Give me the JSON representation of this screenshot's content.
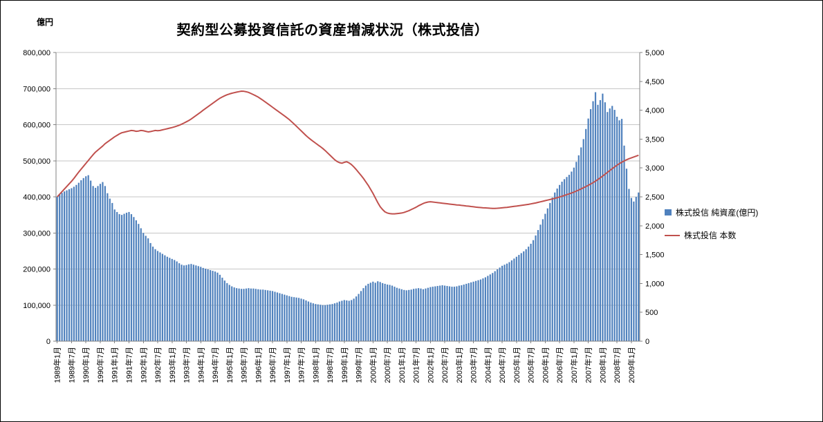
{
  "chart": {
    "title": "契約型公募投資信託の資産増減状況（株式投信）",
    "unit_label": "億円",
    "legend": [
      {
        "label": "株式投信 純資産(億円)",
        "color": "#4f81bd",
        "marker": "bar"
      },
      {
        "label": "株式投信 本数",
        "color": "#c0504d",
        "marker": "line"
      }
    ]
  },
  "chart_data": {
    "type": "bar+line",
    "title": "契約型公募投資信託の資産増減状況（株式投信）",
    "grid": true,
    "legend_position": "right",
    "months_per_tick": 6,
    "x_tick_labels": [
      "1989年1月",
      "1989年7月",
      "1990年1月",
      "1990年7月",
      "1991年1月",
      "1991年7月",
      "1992年1月",
      "1992年7月",
      "1993年1月",
      "1993年7月",
      "1994年1月",
      "1994年7月",
      "1995年1月",
      "1995年7月",
      "1996年1月",
      "1996年7月",
      "1997年1月",
      "1997年7月",
      "1998年1月",
      "1998年7月",
      "1999年1月",
      "1999年7月",
      "2000年1月",
      "2000年7月",
      "2001年1月",
      "2001年7月",
      "2002年1月",
      "2002年7月",
      "2003年1月",
      "2003年7月",
      "2004年1月",
      "2004年7月",
      "2005年1月",
      "2005年7月",
      "2006年1月",
      "2006年7月",
      "2007年1月",
      "2007年7月",
      "2008年1月",
      "2008年7月",
      "2009年1月"
    ],
    "left_axis": {
      "label": "億円",
      "min": 0,
      "max": 800000,
      "step": 100000
    },
    "right_axis": {
      "min": 0,
      "max": 5000,
      "step": 500
    },
    "series": [
      {
        "name": "株式投信 純資産(億円)",
        "type": "bar",
        "axis": "left",
        "color": "#4f81bd",
        "values": [
          400000,
          406000,
          411000,
          415000,
          418000,
          421000,
          424000,
          428000,
          433000,
          439000,
          446000,
          452000,
          457000,
          460000,
          445000,
          430000,
          425000,
          430000,
          436000,
          441000,
          430000,
          410000,
          395000,
          383000,
          365000,
          358000,
          352000,
          350000,
          353000,
          356000,
          358000,
          352000,
          344000,
          335000,
          325000,
          313000,
          300000,
          292000,
          285000,
          272000,
          262000,
          255000,
          250000,
          246000,
          242000,
          238000,
          234000,
          231000,
          228000,
          225000,
          221000,
          216000,
          212000,
          210000,
          211000,
          213000,
          214000,
          212000,
          210000,
          208000,
          206000,
          203000,
          201000,
          199000,
          197000,
          195000,
          193000,
          190000,
          184000,
          176000,
          168000,
          161000,
          156000,
          152000,
          149000,
          147000,
          146000,
          145000,
          145000,
          146000,
          147000,
          146000,
          146000,
          145000,
          144000,
          143000,
          143000,
          142000,
          141000,
          140000,
          139000,
          137000,
          135000,
          133000,
          131000,
          129000,
          127000,
          125000,
          123000,
          122000,
          121000,
          120000,
          118000,
          116000,
          113000,
          110000,
          107000,
          105000,
          103000,
          102000,
          101000,
          100000,
          100000,
          101000,
          102000,
          103000,
          105000,
          107000,
          110000,
          112000,
          114000,
          113000,
          112000,
          114000,
          118000,
          124000,
          131000,
          139000,
          147000,
          154000,
          159000,
          162000,
          165000,
          162000,
          166000,
          164000,
          161000,
          159000,
          157000,
          156000,
          154000,
          151000,
          148000,
          146000,
          144000,
          142000,
          141000,
          142000,
          143000,
          145000,
          146000,
          147000,
          146000,
          144000,
          146000,
          148000,
          150000,
          151000,
          152000,
          153000,
          154000,
          155000,
          154000,
          153000,
          152000,
          151000,
          151000,
          152000,
          154000,
          155000,
          157000,
          159000,
          161000,
          163000,
          165000,
          167000,
          169000,
          171000,
          174000,
          177000,
          181000,
          185000,
          189000,
          194000,
          199000,
          204000,
          209000,
          212000,
          215000,
          219000,
          224000,
          229000,
          234000,
          239000,
          244000,
          249000,
          255000,
          262000,
          270000,
          280000,
          293000,
          308000,
          323000,
          338000,
          353000,
          368000,
          383000,
          398000,
          412000,
          423000,
          433000,
          442000,
          449000,
          455000,
          461000,
          470000,
          481000,
          497000,
          515000,
          537000,
          560000,
          588000,
          617000,
          643000,
          665000,
          690000,
          655000,
          668000,
          686000,
          662000,
          635000,
          645000,
          652000,
          641000,
          622000,
          612000,
          616000,
          542000,
          478000,
          422000,
          397000,
          387000,
          400000,
          412000
        ]
      },
      {
        "name": "株式投信 本数",
        "type": "line",
        "axis": "right",
        "color": "#c0504d",
        "values": [
          2500,
          2545,
          2590,
          2635,
          2680,
          2725,
          2770,
          2820,
          2875,
          2930,
          2980,
          3030,
          3080,
          3130,
          3180,
          3230,
          3275,
          3310,
          3345,
          3380,
          3420,
          3450,
          3480,
          3510,
          3540,
          3565,
          3590,
          3610,
          3620,
          3630,
          3640,
          3650,
          3645,
          3635,
          3640,
          3650,
          3645,
          3635,
          3625,
          3630,
          3640,
          3650,
          3645,
          3650,
          3660,
          3670,
          3680,
          3690,
          3700,
          3712,
          3725,
          3740,
          3758,
          3778,
          3800,
          3822,
          3848,
          3878,
          3908,
          3938,
          3968,
          4000,
          4030,
          4060,
          4090,
          4120,
          4150,
          4180,
          4208,
          4230,
          4250,
          4268,
          4282,
          4294,
          4304,
          4314,
          4322,
          4330,
          4328,
          4320,
          4308,
          4290,
          4270,
          4250,
          4228,
          4200,
          4172,
          4142,
          4112,
          4082,
          4052,
          4022,
          3992,
          3962,
          3932,
          3902,
          3870,
          3838,
          3800,
          3762,
          3722,
          3682,
          3642,
          3602,
          3562,
          3525,
          3492,
          3460,
          3430,
          3400,
          3370,
          3338,
          3302,
          3262,
          3222,
          3182,
          3142,
          3112,
          3092,
          3082,
          3098,
          3108,
          3088,
          3058,
          3018,
          2972,
          2922,
          2872,
          2820,
          2760,
          2700,
          2630,
          2560,
          2480,
          2400,
          2330,
          2280,
          2240,
          2220,
          2210,
          2205,
          2205,
          2210,
          2215,
          2220,
          2230,
          2245,
          2260,
          2280,
          2300,
          2320,
          2345,
          2365,
          2385,
          2400,
          2410,
          2415,
          2410,
          2405,
          2400,
          2395,
          2390,
          2385,
          2380,
          2375,
          2370,
          2365,
          2360,
          2358,
          2352,
          2348,
          2342,
          2338,
          2332,
          2328,
          2322,
          2318,
          2314,
          2310,
          2308,
          2306,
          2302,
          2300,
          2300,
          2302,
          2306,
          2310,
          2314,
          2318,
          2324,
          2330,
          2336,
          2340,
          2346,
          2352,
          2358,
          2364,
          2370,
          2378,
          2386,
          2394,
          2404,
          2414,
          2424,
          2434,
          2444,
          2454,
          2464,
          2474,
          2486,
          2498,
          2510,
          2524,
          2538,
          2552,
          2566,
          2582,
          2600,
          2618,
          2638,
          2658,
          2678,
          2700,
          2722,
          2746,
          2772,
          2800,
          2830,
          2860,
          2892,
          2924,
          2956,
          2988,
          3018,
          3048,
          3076,
          3100,
          3122,
          3142,
          3160,
          3175,
          3190,
          3205,
          3220
        ]
      }
    ]
  }
}
